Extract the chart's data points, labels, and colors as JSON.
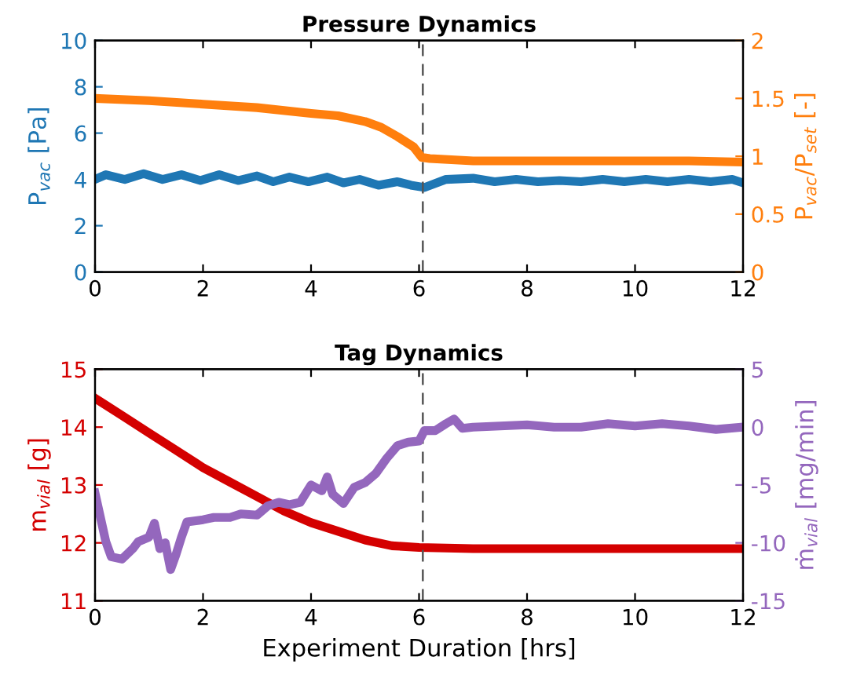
{
  "chart_data": [
    {
      "type": "line",
      "title": "Pressure Dynamics",
      "ylabel": "P$_{vac}$ [Pa]",
      "y2label": "P$_{vac}$/P$_{set}$ [-]",
      "xlim": [
        0,
        12
      ],
      "xticks": [
        0,
        2,
        4,
        6,
        8,
        10,
        12
      ],
      "ylim": [
        0,
        10
      ],
      "yticks": [
        0,
        2,
        4,
        6,
        8,
        10
      ],
      "y2lim": [
        0,
        2
      ],
      "y2ticks": [
        0,
        0.5,
        1,
        1.5,
        2
      ],
      "series": [
        {
          "color": "#1f77b4",
          "x": [
            0,
            0.2,
            0.55,
            0.9,
            1.25,
            1.6,
            1.95,
            2.3,
            2.65,
            3.0,
            3.3,
            3.6,
            3.95,
            4.3,
            4.6,
            4.9,
            5.25,
            5.6,
            5.85,
            6.1,
            6.5,
            7.0,
            7.4,
            7.8,
            8.2,
            8.6,
            9.0,
            9.4,
            9.8,
            10.2,
            10.6,
            11.0,
            11.4,
            11.8,
            12
          ],
          "values": [
            4.0,
            4.2,
            4.0,
            4.25,
            4.0,
            4.2,
            3.95,
            4.2,
            3.95,
            4.15,
            3.9,
            4.1,
            3.9,
            4.1,
            3.85,
            4.0,
            3.75,
            3.9,
            3.75,
            3.65,
            4.0,
            4.05,
            3.9,
            4.0,
            3.9,
            3.95,
            3.9,
            4.0,
            3.9,
            4.0,
            3.9,
            4.0,
            3.9,
            4.0,
            3.85
          ]
        },
        {
          "color": "#ff7f0e",
          "axis": "y2",
          "x": [
            0,
            1,
            2,
            3,
            4,
            4.5,
            5,
            5.3,
            5.6,
            5.9,
            6.05,
            6.2,
            7,
            8,
            9,
            10,
            11,
            12
          ],
          "values": [
            1.5,
            1.48,
            1.45,
            1.42,
            1.37,
            1.35,
            1.3,
            1.25,
            1.17,
            1.08,
            0.99,
            0.98,
            0.96,
            0.96,
            0.96,
            0.96,
            0.96,
            0.95
          ]
        }
      ],
      "ref_lines": [
        {
          "axis": "x",
          "value": 6.07,
          "color": "#555555",
          "line_style": "dashed"
        }
      ]
    },
    {
      "type": "line",
      "title": "Tag Dynamics",
      "xlabel": "Experiment Duration [hrs]",
      "ylabel": "m$_{vial}$ [g]",
      "y2label": "ṁ$_{vial}$ [mg/min]",
      "xlim": [
        0,
        12
      ],
      "xticks": [
        0,
        2,
        4,
        6,
        8,
        10,
        12
      ],
      "ylim": [
        11,
        15
      ],
      "yticks": [
        11,
        12,
        13,
        14,
        15
      ],
      "y2lim": [
        -15,
        5
      ],
      "y2ticks": [
        -15,
        -10,
        -5,
        0,
        5
      ],
      "series": [
        {
          "color": "#d40000",
          "x": [
            0,
            0.5,
            1,
            1.5,
            2,
            2.5,
            3,
            3.5,
            4,
            4.5,
            5,
            5.5,
            6,
            7,
            8,
            9,
            10,
            11,
            12
          ],
          "values": [
            14.5,
            14.2,
            13.9,
            13.6,
            13.3,
            13.05,
            12.8,
            12.55,
            12.35,
            12.2,
            12.05,
            11.95,
            11.92,
            11.9,
            11.9,
            11.9,
            11.9,
            11.9,
            11.9
          ]
        },
        {
          "color": "#9467bd",
          "axis": "y2",
          "x": [
            0,
            0.1,
            0.2,
            0.3,
            0.5,
            0.7,
            0.8,
            1.0,
            1.1,
            1.2,
            1.3,
            1.4,
            1.5,
            1.6,
            1.7,
            2.0,
            2.2,
            2.5,
            2.7,
            3.0,
            3.2,
            3.4,
            3.6,
            3.8,
            4.0,
            4.2,
            4.3,
            4.4,
            4.6,
            4.8,
            5.0,
            5.2,
            5.4,
            5.6,
            5.8,
            6.0,
            6.1,
            6.3,
            6.5,
            6.65,
            6.8,
            7,
            7.5,
            8,
            8.5,
            9,
            9.5,
            10,
            10.5,
            11,
            11.5,
            12
          ],
          "values": [
            -5.7,
            -7.8,
            -9.9,
            -11.2,
            -11.4,
            -10.5,
            -9.9,
            -9.5,
            -8.3,
            -10.5,
            -10.0,
            -12.3,
            -11,
            -9.5,
            -8.2,
            -8.0,
            -7.8,
            -7.8,
            -7.5,
            -7.6,
            -6.8,
            -6.5,
            -6.7,
            -6.5,
            -5.0,
            -5.5,
            -4.3,
            -5.8,
            -6.6,
            -5.2,
            -4.8,
            -4.0,
            -2.7,
            -1.6,
            -1.3,
            -1.2,
            -0.3,
            -0.3,
            0.3,
            0.7,
            -0.1,
            0,
            0.1,
            0.2,
            0,
            0,
            0.3,
            0.1,
            0.3,
            0.1,
            -0.2,
            0
          ]
        }
      ],
      "ref_lines": [
        {
          "axis": "x",
          "value": 6.07,
          "color": "#555555",
          "line_style": "dashed"
        }
      ]
    }
  ]
}
